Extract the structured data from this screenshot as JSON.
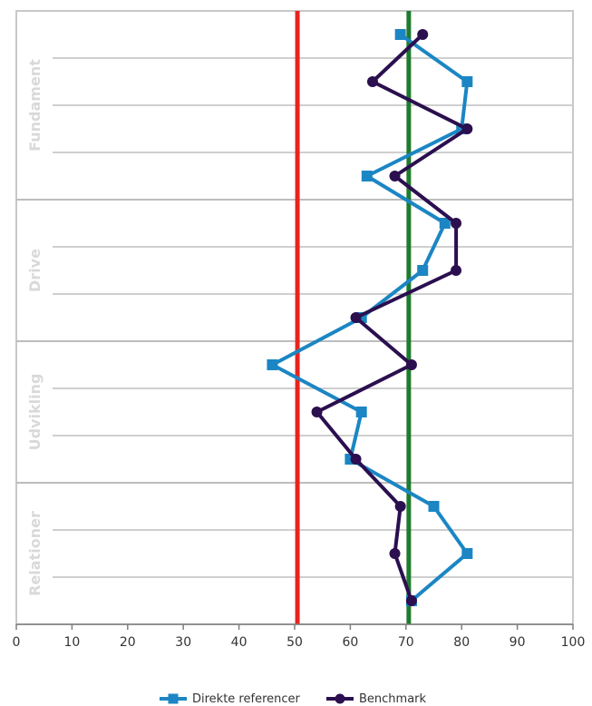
{
  "chart_data": {
    "type": "line",
    "orientation": "horizontal",
    "xlim": [
      0,
      100
    ],
    "x_ticks": [
      "0",
      "10",
      "20",
      "30",
      "40",
      "50",
      "60",
      "70",
      "80",
      "90",
      "100"
    ],
    "groups": [
      {
        "label": "Fundament",
        "rows": 4
      },
      {
        "label": "Drive",
        "rows": 3
      },
      {
        "label": "Udvikling",
        "rows": 3
      },
      {
        "label": "Relationer",
        "rows": 3
      }
    ],
    "reference_lines": [
      {
        "value": 50.5,
        "color": "#e8231e"
      },
      {
        "value": 70.5,
        "color": "#1f7a2e"
      }
    ],
    "series": [
      {
        "name": "Direkte referencer",
        "color": "#1b86c3",
        "marker": "square",
        "values": [
          69,
          81,
          80,
          63,
          77,
          73,
          62,
          46,
          62,
          60,
          75,
          81,
          71
        ]
      },
      {
        "name": "Benchmark",
        "color": "#2b0f4f",
        "marker": "circle",
        "values": [
          73,
          64,
          81,
          68,
          79,
          79,
          61,
          71,
          54,
          61,
          69,
          68,
          71
        ]
      }
    ],
    "legend_position": "bottom",
    "grid": true
  }
}
